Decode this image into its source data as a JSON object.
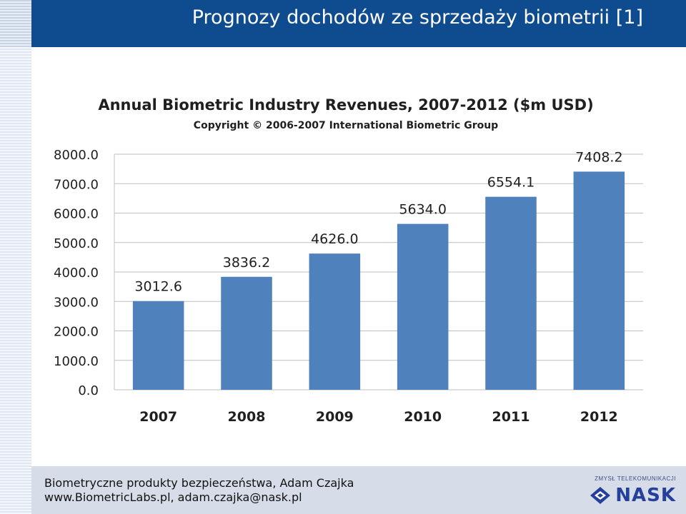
{
  "slide": {
    "title": "Prognozy dochodów ze sprzedaży biometrii [1]"
  },
  "footer": {
    "line1": "Biometryczne produkty bezpieczeństwa, Adam Czajka",
    "line2": "www.BiometricLabs.pl, adam.czajka@nask.pl",
    "brand_tagline": "ZMYSŁ TELEKOMUNIKACJI",
    "brand_name": "NASK"
  },
  "colors": {
    "header": "#0f4b8f",
    "bar": "#4f81bd",
    "grid": "#bfbfbf"
  },
  "chart_data": {
    "type": "bar",
    "title": "Annual Biometric Industry Revenues, 2007-2012 ($m USD)",
    "subtitle": "Copyright © 2006-2007 International Biometric Group",
    "categories": [
      "2007",
      "2008",
      "2009",
      "2010",
      "2011",
      "2012"
    ],
    "values": [
      3012.6,
      3836.2,
      4626.0,
      5634.0,
      6554.1,
      7408.2
    ],
    "value_labels": [
      "3012.6",
      "3836.2",
      "4626.0",
      "5634.0",
      "6554.1",
      "7408.2"
    ],
    "yticks": [
      "0.0",
      "1000.0",
      "2000.0",
      "3000.0",
      "4000.0",
      "5000.0",
      "6000.0",
      "7000.0",
      "8000.0"
    ],
    "ylim": [
      0,
      8000
    ],
    "xlabel": "",
    "ylabel": "",
    "grid": true
  }
}
